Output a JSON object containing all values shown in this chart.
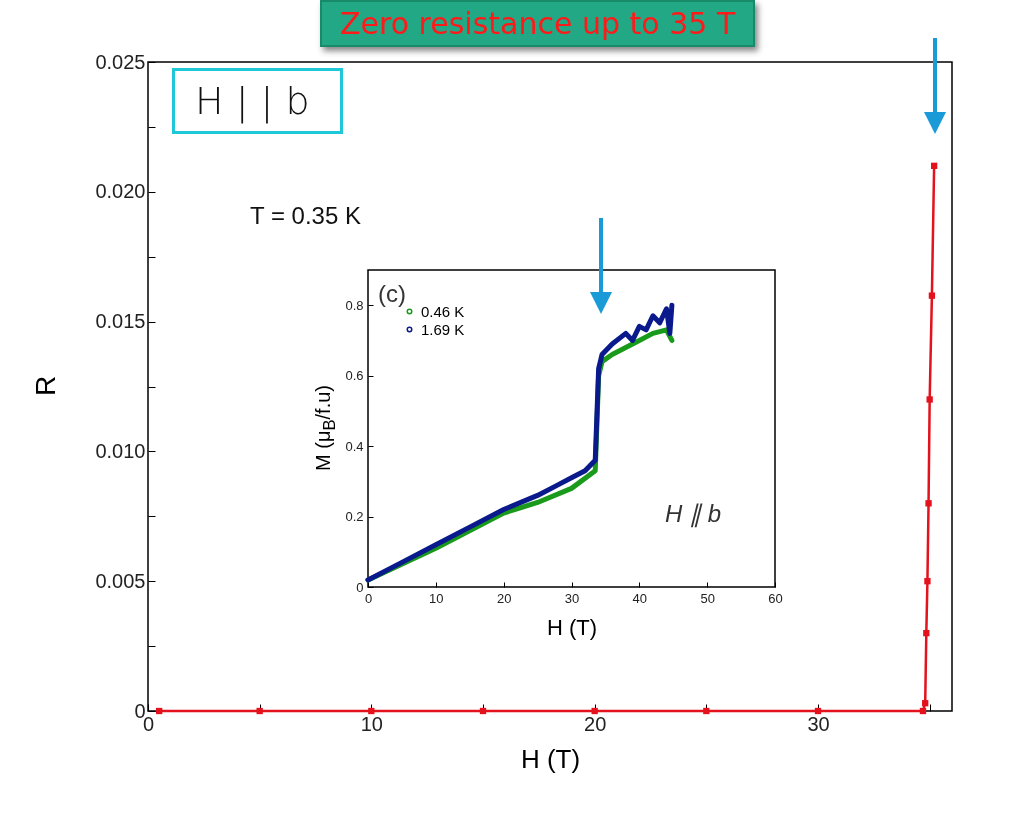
{
  "chart_data": [
    {
      "type": "line",
      "xlabel": "H (T)",
      "ylabel": "R",
      "marker": "square",
      "line_style": "solid",
      "series": [
        {
          "color": "#e3121c",
          "x": [
            0.5,
            5,
            10,
            15,
            20,
            25,
            30,
            34.7,
            34.8,
            34.85,
            34.9,
            34.95,
            35.0,
            35.1,
            35.2
          ],
          "values": [
            0,
            0,
            0,
            0,
            0,
            0,
            0,
            0,
            0.0003,
            0.003,
            0.005,
            0.008,
            0.012,
            0.016,
            0.021
          ]
        }
      ],
      "xlim": [
        0,
        36
      ],
      "xticks": [
        0,
        {
          "value": 5,
          "label": null
        },
        10,
        {
          "value": 15,
          "label": null
        },
        20,
        {
          "value": 25,
          "label": null
        },
        30,
        {
          "value": 35,
          "label": null
        }
      ],
      "ylim": [
        0,
        0.025
      ],
      "yticks": [
        0,
        {
          "value": 0.0025,
          "label": null
        },
        0.005,
        {
          "value": 0.0075,
          "label": null
        },
        {
          "value": 0.01,
          "label": "0.010"
        },
        {
          "value": 0.0125,
          "label": null
        },
        0.015,
        {
          "value": 0.0175,
          "label": null
        },
        {
          "value": 0.02,
          "label": "0.020"
        },
        {
          "value": 0.0225,
          "label": null
        },
        0.025
      ],
      "annotations": [
        "Zero resistance up to 35 T",
        "H | | b",
        "T = 0.35 K"
      ]
    },
    {
      "type": "line",
      "xlabel": "H (T)",
      "ylabel": "M (μ$_{B}$/f.u)",
      "legend": "top left",
      "line_style": "solid",
      "series": [
        {
          "name": "0.46 K",
          "color": "#1a9a1a",
          "x": [
            0,
            10,
            20,
            25,
            30,
            33.5,
            34,
            34.5,
            36,
            38,
            40,
            42,
            44,
            44.8
          ],
          "values": [
            0.02,
            0.11,
            0.21,
            0.24,
            0.28,
            0.33,
            0.6,
            0.64,
            0.66,
            0.68,
            0.7,
            0.72,
            0.73,
            0.7
          ]
        },
        {
          "name": "1.69 K",
          "color": "#0a1a8c",
          "x": [
            0,
            5,
            10,
            15,
            20,
            25,
            28,
            30,
            32,
            33.5,
            34,
            34.5,
            36,
            38,
            39,
            40,
            41,
            42,
            43,
            44,
            44.5,
            44.8
          ],
          "values": [
            0.02,
            0.07,
            0.12,
            0.17,
            0.22,
            0.26,
            0.29,
            0.31,
            0.33,
            0.36,
            0.62,
            0.66,
            0.69,
            0.72,
            0.7,
            0.74,
            0.73,
            0.77,
            0.75,
            0.79,
            0.72,
            0.8
          ]
        }
      ],
      "xlim": [
        0,
        60
      ],
      "xticks": [
        0,
        10,
        20,
        30,
        40,
        50,
        60
      ],
      "ylim": [
        0,
        0.9
      ],
      "yticks": [
        0,
        0.2,
        0.4,
        0.6,
        0.8
      ],
      "annotations": [
        "(c)",
        "H ∥ b"
      ]
    }
  ]
}
